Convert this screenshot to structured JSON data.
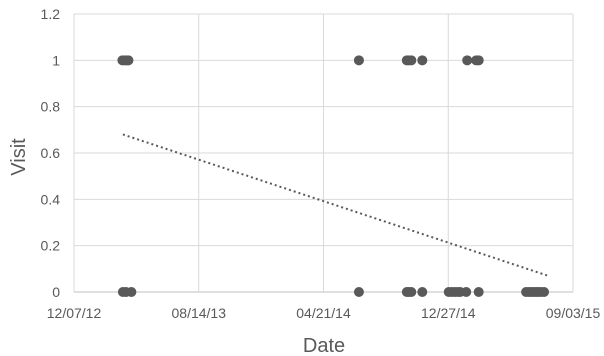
{
  "chart_data": {
    "type": "scatter",
    "xlabel": "Date",
    "ylabel": "Visit",
    "x_axis": {
      "type": "date",
      "min": "12/07/12",
      "max": "09/03/15",
      "ticks": [
        "12/07/12",
        "08/14/13",
        "04/21/14",
        "12/27/14",
        "09/03/15"
      ]
    },
    "y_axis": {
      "min": 0,
      "max": 1.2,
      "ticks": [
        "0",
        "0.2",
        "0.4",
        "0.6",
        "0.8",
        "1",
        "1.2"
      ]
    },
    "grid": true,
    "point_color": "#595959",
    "trendline": {
      "style": "dotted",
      "color": "#595959",
      "start": {
        "x": "03/15/13",
        "y": 0.68
      },
      "end": {
        "x": "07/15/15",
        "y": 0.07
      }
    },
    "series": [
      {
        "points": [
          {
            "x": "03/14/13",
            "y": 1
          },
          {
            "x": "03/18/13",
            "y": 1
          },
          {
            "x": "03/22/13",
            "y": 1
          },
          {
            "x": "03/26/13",
            "y": 1
          },
          {
            "x": "03/15/13",
            "y": 0
          },
          {
            "x": "03/21/13",
            "y": 0
          },
          {
            "x": "04/01/13",
            "y": 0
          },
          {
            "x": "07/01/14",
            "y": 1
          },
          {
            "x": "07/01/14",
            "y": 0
          },
          {
            "x": "10/05/14",
            "y": 1
          },
          {
            "x": "10/09/14",
            "y": 1
          },
          {
            "x": "10/14/14",
            "y": 1
          },
          {
            "x": "11/05/14",
            "y": 1
          },
          {
            "x": "10/05/14",
            "y": 0
          },
          {
            "x": "10/09/14",
            "y": 0
          },
          {
            "x": "10/14/14",
            "y": 0
          },
          {
            "x": "11/05/14",
            "y": 0
          },
          {
            "x": "12/28/14",
            "y": 0
          },
          {
            "x": "01/03/15",
            "y": 0
          },
          {
            "x": "01/09/15",
            "y": 0
          },
          {
            "x": "01/15/15",
            "y": 0
          },
          {
            "x": "01/20/15",
            "y": 0
          },
          {
            "x": "02/01/15",
            "y": 0
          },
          {
            "x": "02/26/15",
            "y": 0
          },
          {
            "x": "02/03/15",
            "y": 1
          },
          {
            "x": "02/21/15",
            "y": 1
          },
          {
            "x": "02/26/15",
            "y": 1
          },
          {
            "x": "06/01/15",
            "y": 0
          },
          {
            "x": "06/06/15",
            "y": 0
          },
          {
            "x": "06/11/15",
            "y": 0
          },
          {
            "x": "06/16/15",
            "y": 0
          },
          {
            "x": "06/21/15",
            "y": 0
          },
          {
            "x": "06/26/15",
            "y": 0
          },
          {
            "x": "07/01/15",
            "y": 0
          },
          {
            "x": "07/07/15",
            "y": 0
          }
        ]
      }
    ]
  }
}
